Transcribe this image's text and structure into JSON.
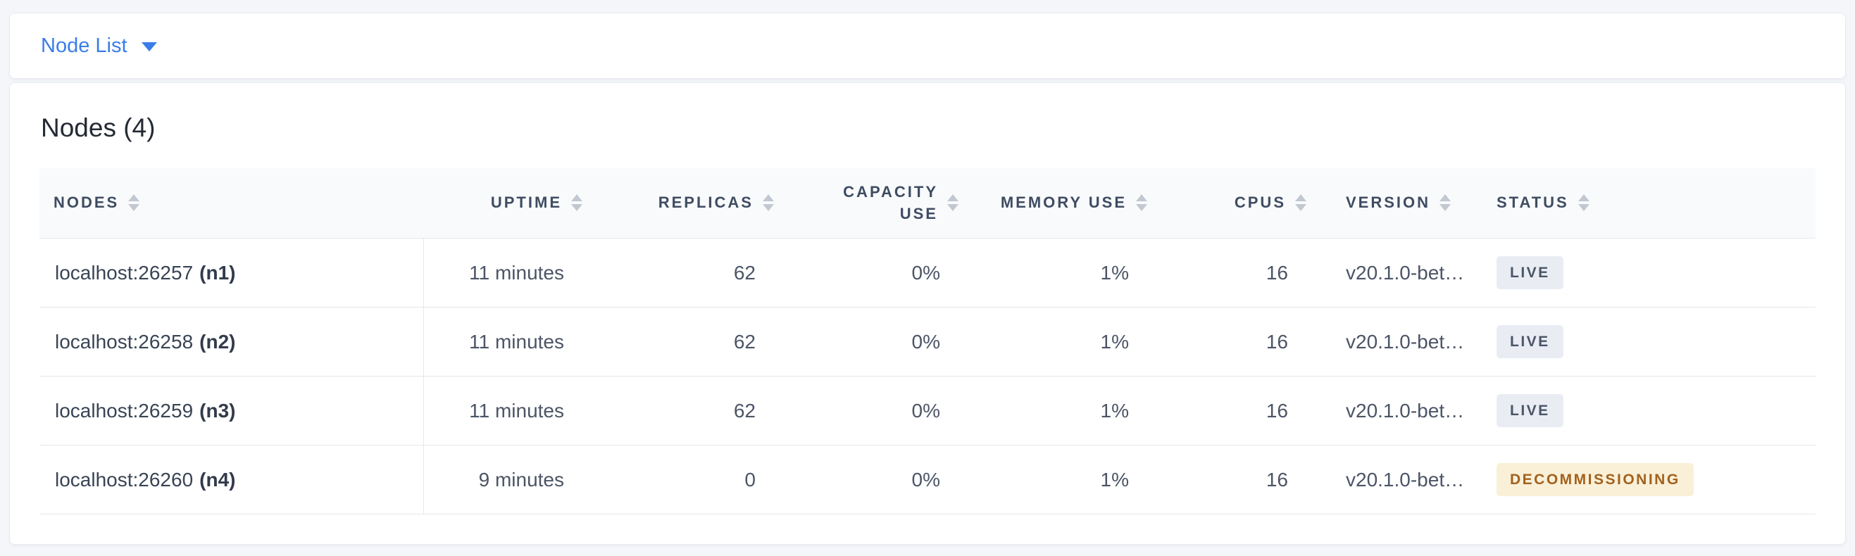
{
  "header_bar": {
    "view_dropdown": {
      "label": "Node List"
    }
  },
  "panel": {
    "title": "Nodes (4)",
    "table": {
      "columns": [
        {
          "key": "nodes",
          "label": "NODES"
        },
        {
          "key": "uptime",
          "label": "UPTIME"
        },
        {
          "key": "replicas",
          "label": "REPLICAS"
        },
        {
          "key": "capacity_use",
          "label": "CAPACITY USE"
        },
        {
          "key": "memory_use",
          "label": "MEMORY USE"
        },
        {
          "key": "cpus",
          "label": "CPUS"
        },
        {
          "key": "version",
          "label": "VERSION"
        },
        {
          "key": "status",
          "label": "STATUS"
        }
      ],
      "rows": [
        {
          "nodes_address": "localhost:26257",
          "nodes_id": "(n1)",
          "uptime": "11 minutes",
          "replicas": "62",
          "capacity_use": "0%",
          "memory_use": "1%",
          "cpus": "16",
          "version": "v20.1.0-bet…",
          "status": "LIVE",
          "status_type": "live"
        },
        {
          "nodes_address": "localhost:26258",
          "nodes_id": "(n2)",
          "uptime": "11 minutes",
          "replicas": "62",
          "capacity_use": "0%",
          "memory_use": "1%",
          "cpus": "16",
          "version": "v20.1.0-bet…",
          "status": "LIVE",
          "status_type": "live"
        },
        {
          "nodes_address": "localhost:26259",
          "nodes_id": "(n3)",
          "uptime": "11 minutes",
          "replicas": "62",
          "capacity_use": "0%",
          "memory_use": "1%",
          "cpus": "16",
          "version": "v20.1.0-bet…",
          "status": "LIVE",
          "status_type": "live"
        },
        {
          "nodes_address": "localhost:26260",
          "nodes_id": "(n4)",
          "uptime": "9 minutes",
          "replicas": "0",
          "capacity_use": "0%",
          "memory_use": "1%",
          "cpus": "16",
          "version": "v20.1.0-bet…",
          "status": "DECOMMISSIONING",
          "status_type": "decommissioning"
        }
      ]
    }
  },
  "colors": {
    "accent_blue": "#3a7de8",
    "header_text": "#3e4c63",
    "status_live_bg": "#e9edf3",
    "status_live_text": "#4a5568",
    "status_decommissioning_bg": "#faf0d8",
    "status_decommissioning_text": "#a2621f"
  }
}
